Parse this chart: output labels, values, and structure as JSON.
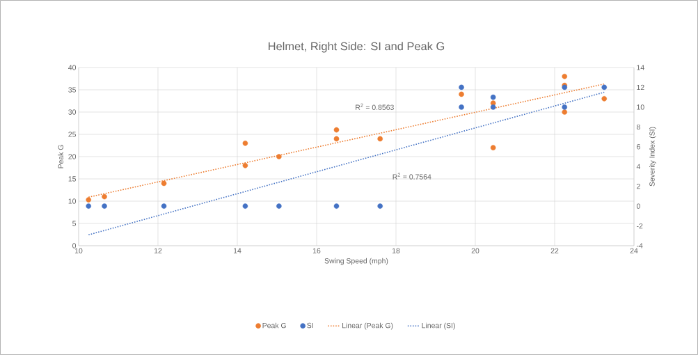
{
  "chart_data": {
    "type": "scatter",
    "title": "Helmet, Right Side: SI and Peak G",
    "xlabel": "Swing Speed (mph)",
    "ylabel": "Peak G",
    "y2label": "Severity Index (SI)",
    "xlim": [
      10,
      24
    ],
    "xticks": [
      10,
      12,
      14,
      16,
      18,
      20,
      22,
      24
    ],
    "ylim": [
      0,
      40
    ],
    "yticks": [
      0,
      5,
      10,
      15,
      20,
      25,
      30,
      35,
      40
    ],
    "y2lim": [
      -4,
      14
    ],
    "y2ticks": [
      -4,
      -2,
      0,
      2,
      4,
      6,
      8,
      10,
      12,
      14
    ],
    "grid": true,
    "legend": "bottom",
    "series": [
      {
        "name": "Peak G",
        "color": "#ed7d31",
        "marker": "circle",
        "x": [
          10.25,
          10.65,
          12.15,
          14.2,
          14.2,
          15.05,
          16.5,
          16.5,
          17.6,
          19.65,
          20.45,
          20.45,
          22.25,
          22.25,
          22.25,
          23.25
        ],
        "values": [
          10.3,
          11,
          14,
          23,
          18,
          20,
          26,
          24,
          24,
          34,
          32,
          22,
          38,
          36,
          30,
          33
        ]
      },
      {
        "name": "SI",
        "color": "#4472c4",
        "marker": "circle",
        "axis": "y2",
        "x": [
          10.25,
          10.65,
          12.15,
          14.2,
          15.05,
          16.5,
          17.6,
          19.65,
          19.65,
          20.45,
          20.45,
          22.25,
          22.25,
          23.25
        ],
        "values": [
          0,
          0,
          0,
          0,
          0,
          0,
          0,
          12,
          10,
          11,
          10,
          12,
          10,
          12
        ]
      },
      {
        "name": "Linear (Peak G)",
        "type": "line",
        "line_style": "dotted",
        "marker": "none",
        "color": "#ed7d31",
        "x": [
          10.25,
          23.25
        ],
        "values": [
          10.9,
          36.3
        ]
      },
      {
        "name": "Linear (SI)",
        "type": "line",
        "line_style": "dotted",
        "marker": "none",
        "color": "#4472c4",
        "axis": "y2",
        "x": [
          10.25,
          23.25
        ],
        "values": [
          -2.9,
          11.5
        ]
      }
    ],
    "annotations": [
      "R$^{2}$ = 0.8563",
      "R$^{2}$ = 0.7564"
    ]
  }
}
